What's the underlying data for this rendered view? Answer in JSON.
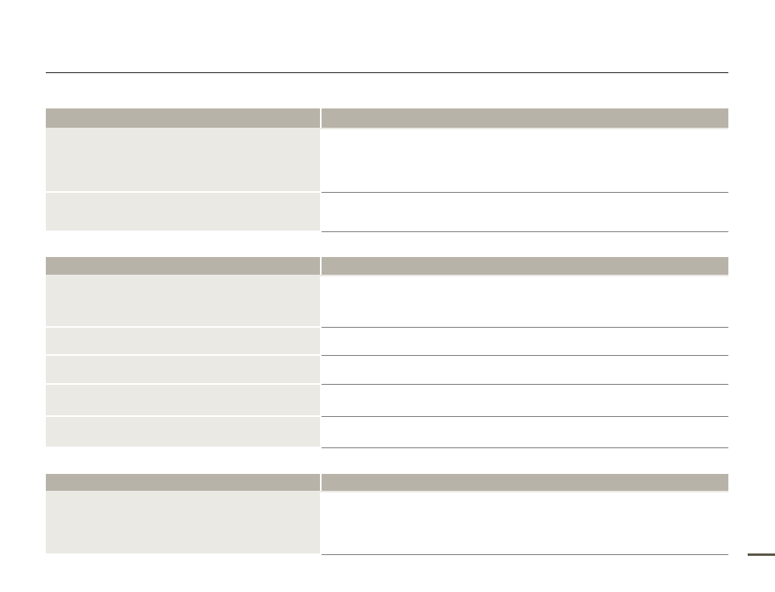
{
  "colors": {
    "header_fill": "#b8b3a8",
    "label_cell_fill": "#ebe9e4",
    "row_divider": "#7a7a7a",
    "top_rule": "#1e1e1e",
    "page_mark": "#5b5646"
  },
  "tables": [
    {
      "rows": 2
    },
    {
      "rows": 5
    },
    {
      "rows": 1
    }
  ]
}
